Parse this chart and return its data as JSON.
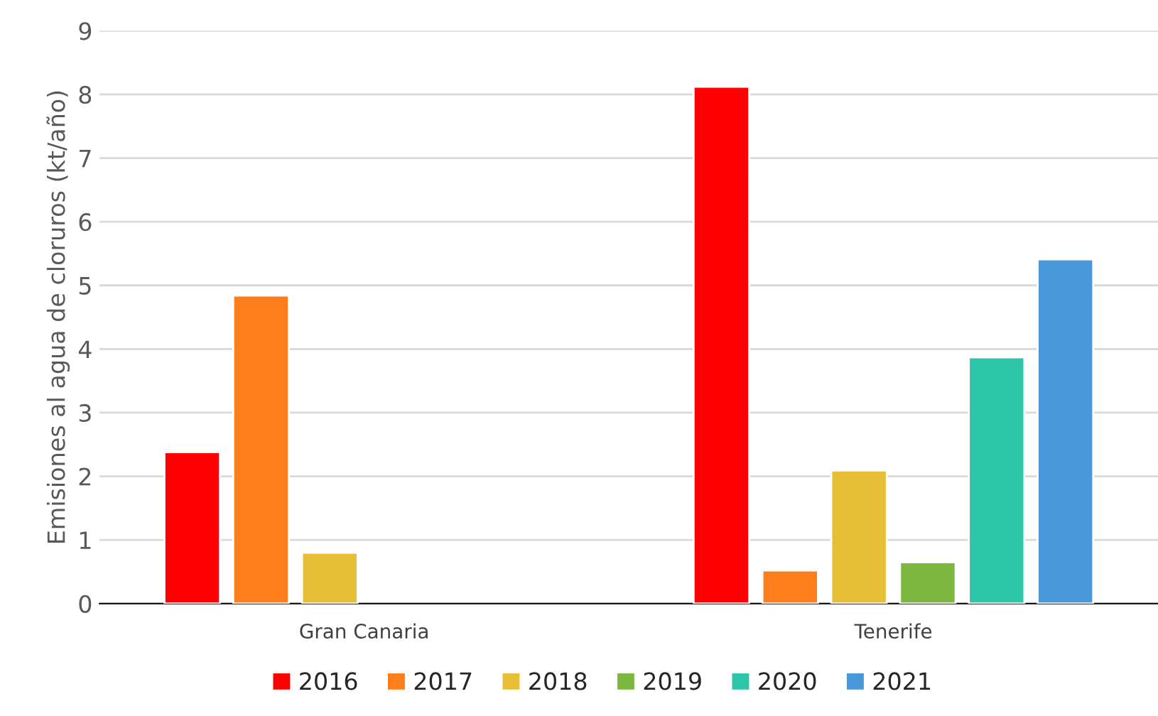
{
  "chart_data": {
    "type": "bar",
    "ylabel": "Emisiones al agua de cloruros (kt/año)",
    "categories": [
      "Gran Canaria",
      "Tenerife"
    ],
    "series": [
      {
        "name": "2016",
        "color": "#ff0000",
        "values": [
          2.38,
          8.12
        ]
      },
      {
        "name": "2017",
        "color": "#fd7e1a",
        "values": [
          4.84,
          0.52
        ]
      },
      {
        "name": "2018",
        "color": "#e6bf37",
        "values": [
          0.8,
          2.09
        ]
      },
      {
        "name": "2019",
        "color": "#7cb83f",
        "values": [
          null,
          0.65
        ]
      },
      {
        "name": "2020",
        "color": "#2ec6a8",
        "values": [
          null,
          3.87
        ]
      },
      {
        "name": "2021",
        "color": "#4897d8",
        "values": [
          null,
          5.41
        ]
      }
    ],
    "ylim": [
      0,
      9
    ],
    "yticks": [
      0,
      1,
      2,
      3,
      4,
      5,
      6,
      7,
      8,
      9
    ],
    "grid": "y",
    "legend": "bottom"
  }
}
